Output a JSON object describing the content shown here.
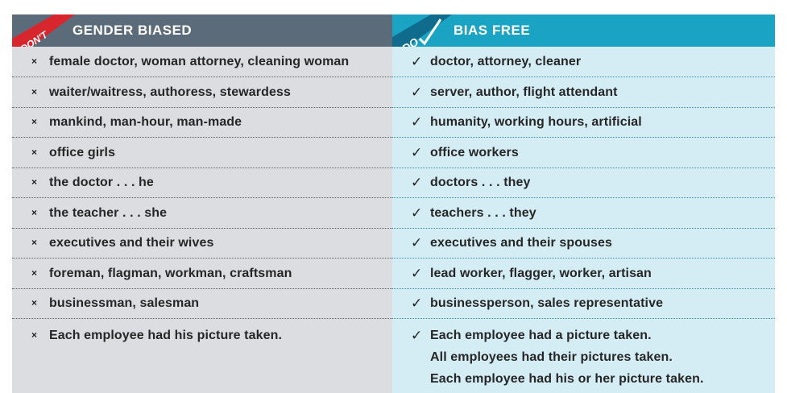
{
  "left": {
    "header": "GENDER BIASED",
    "flag": "DON'T",
    "mark": "×",
    "rows": [
      "female doctor, woman attorney, cleaning woman",
      "waiter/waitress, authoress, stewardess",
      "mankind, man-hour, man-made",
      "office girls",
      "the doctor . . . he",
      "the teacher . . . she",
      "executives and their wives",
      "foreman, flagman, workman, craftsman",
      "businessman, salesman",
      "Each employee had his picture taken."
    ]
  },
  "right": {
    "header": "BIAS FREE",
    "flag": "DO",
    "mark": "✓",
    "rows": [
      "doctor, attorney, cleaner",
      "server, author, flight attendant",
      "humanity, working hours, artificial",
      "office workers",
      "doctors . . . they",
      "teachers . . . they",
      "executives and their spouses",
      "lead worker, flagger, worker, artisan",
      "businessperson, sales representative",
      "Each employee had a picture taken."
    ],
    "last_extra": [
      "All employees had their pictures taken.",
      "Each employee had his or her picture taken."
    ]
  },
  "colors": {
    "left_header": "#5c6b7a",
    "right_header": "#1ba3c4",
    "left_body": "#dcdde0",
    "right_body": "#d4edf5",
    "dont_flag": "#d7262e",
    "do_flag": "#0f6c8c"
  }
}
